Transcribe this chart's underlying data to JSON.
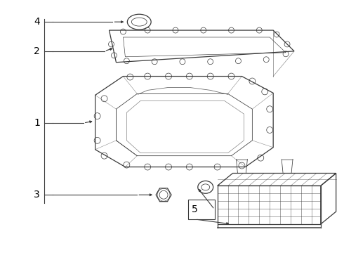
{
  "bg_color": "#ffffff",
  "line_color": "#3a3a3a",
  "label_color": "#000000",
  "label_fontsize": 10,
  "arrow_mutation_scale": 5
}
